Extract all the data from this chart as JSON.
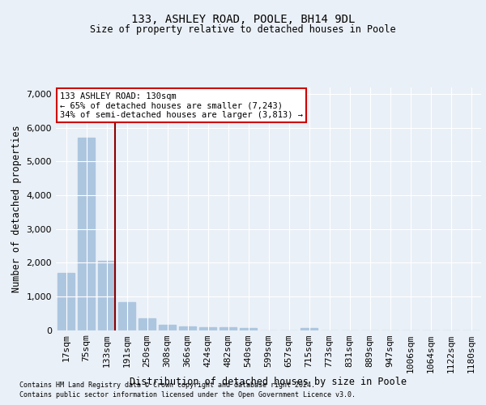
{
  "title1": "133, ASHLEY ROAD, POOLE, BH14 9DL",
  "title2": "Size of property relative to detached houses in Poole",
  "xlabel": "Distribution of detached houses by size in Poole",
  "ylabel": "Number of detached properties",
  "bar_color": "#adc6e0",
  "marker_color": "#8b0000",
  "categories": [
    "17sqm",
    "75sqm",
    "133sqm",
    "191sqm",
    "250sqm",
    "308sqm",
    "366sqm",
    "424sqm",
    "482sqm",
    "540sqm",
    "599sqm",
    "657sqm",
    "715sqm",
    "773sqm",
    "831sqm",
    "889sqm",
    "947sqm",
    "1006sqm",
    "1064sqm",
    "1122sqm",
    "1180sqm"
  ],
  "values": [
    1700,
    5700,
    2050,
    820,
    340,
    155,
    110,
    90,
    80,
    55,
    0,
    0,
    55,
    0,
    0,
    0,
    0,
    0,
    0,
    0,
    0
  ],
  "ylim": [
    0,
    7200
  ],
  "yticks": [
    0,
    1000,
    2000,
    3000,
    4000,
    5000,
    6000,
    7000
  ],
  "property_bar_index": 2,
  "annotation_line1": "133 ASHLEY ROAD: 130sqm",
  "annotation_line2": "← 65% of detached houses are smaller (7,243)",
  "annotation_line3": "34% of semi-detached houses are larger (3,813) →",
  "footnote1": "Contains HM Land Registry data © Crown copyright and database right 2024.",
  "footnote2": "Contains public sector information licensed under the Open Government Licence v3.0.",
  "bg_color": "#eaf0f7",
  "plot_bg_color": "#eaf0f7",
  "grid_color": "#ffffff",
  "annotation_box_color": "#cc0000"
}
